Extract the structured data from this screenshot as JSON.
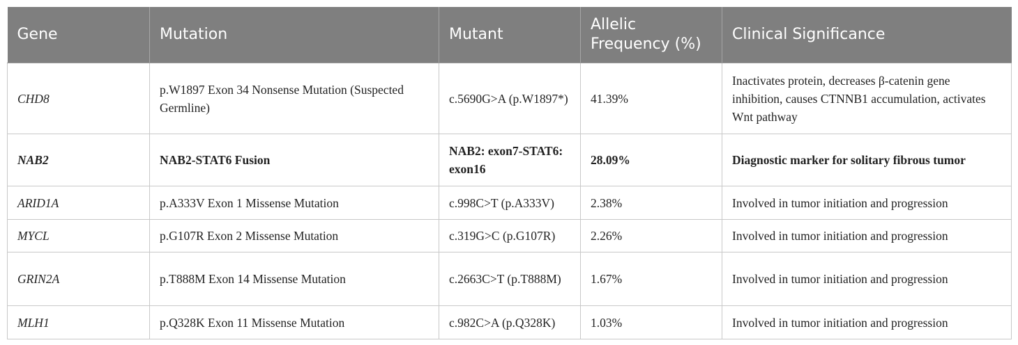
{
  "table": {
    "headers": {
      "gene": "Gene",
      "mutation": "Mutation",
      "mutant": "Mutant",
      "allelic_frequency": "Allelic Frequency (%)",
      "clinical_significance": "Clinical Significance"
    },
    "rows": [
      {
        "gene": "CHD8",
        "mutation": "p.W1897 Exon 34 Nonsense Mutation (Suspected Germline)",
        "mutant": "c.5690G>A (p.W1897*)",
        "frequency": "41.39%",
        "significance": "Inactivates protein, decreases β-catenin gene inhibition, causes CTNNB1 accumulation, activates Wnt pathway"
      },
      {
        "gene": "NAB2",
        "mutation": "NAB2-STAT6 Fusion",
        "mutant": "NAB2: exon7-STAT6: exon16",
        "frequency": "28.09%",
        "significance": "Diagnostic marker for solitary fibrous tumor"
      },
      {
        "gene": "ARID1A",
        "mutation": "p.A333V Exon 1 Missense Mutation",
        "mutant": "c.998C>T (p.A333V)",
        "frequency": "2.38%",
        "significance": "Involved in tumor initiation and progression"
      },
      {
        "gene": "MYCL",
        "mutation": "p.G107R Exon 2 Missense Mutation",
        "mutant": "c.319G>C (p.G107R)",
        "frequency": "2.26%",
        "significance": "Involved in tumor initiation and progression"
      },
      {
        "gene": "GRIN2A",
        "mutation": "p.T888M Exon 14 Missense Mutation",
        "mutant": "c.2663C>T (p.T888M)",
        "frequency": "1.67%",
        "significance": "Involved in tumor initiation and progression"
      },
      {
        "gene": "MLH1",
        "mutation": "p.Q328K Exon 11 Missense Mutation",
        "mutant": "c.982C>A (p.Q328K)",
        "frequency": "1.03%",
        "significance": "Involved in tumor initiation and progression"
      }
    ]
  },
  "colors": {
    "header_background": "#7f7f7f",
    "header_text": "#ffffff",
    "grid_lines": "#c8c8c8"
  }
}
